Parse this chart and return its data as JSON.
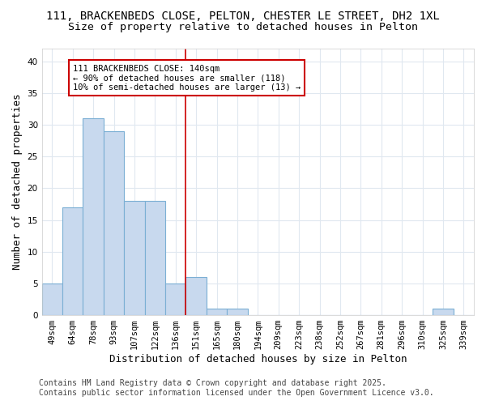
{
  "title1": "111, BRACKENBEDS CLOSE, PELTON, CHESTER LE STREET, DH2 1XL",
  "title2": "Size of property relative to detached houses in Pelton",
  "xlabel": "Distribution of detached houses by size in Pelton",
  "ylabel": "Number of detached properties",
  "categories": [
    "49sqm",
    "64sqm",
    "78sqm",
    "93sqm",
    "107sqm",
    "122sqm",
    "136sqm",
    "151sqm",
    "165sqm",
    "180sqm",
    "194sqm",
    "209sqm",
    "223sqm",
    "238sqm",
    "252sqm",
    "267sqm",
    "281sqm",
    "296sqm",
    "310sqm",
    "325sqm",
    "339sqm"
  ],
  "values": [
    5,
    17,
    31,
    29,
    18,
    18,
    5,
    6,
    1,
    1,
    0,
    0,
    0,
    0,
    0,
    0,
    0,
    0,
    0,
    1,
    0
  ],
  "bar_color": "#c8d9ee",
  "bar_edge_color": "#7bafd4",
  "vline_x": 6.5,
  "vline_color": "#cc0000",
  "annotation_text": "111 BRACKENBEDS CLOSE: 140sqm\n← 90% of detached houses are smaller (118)\n10% of semi-detached houses are larger (13) →",
  "annotation_box_color": "#ffffff",
  "annotation_box_edge_color": "#cc0000",
  "ylim": [
    0,
    42
  ],
  "yticks": [
    0,
    5,
    10,
    15,
    20,
    25,
    30,
    35,
    40
  ],
  "footer": "Contains HM Land Registry data © Crown copyright and database right 2025.\nContains public sector information licensed under the Open Government Licence v3.0.",
  "bg_color": "#ffffff",
  "plot_bg_color": "#ffffff",
  "grid_color": "#e0e8f0",
  "title_fontsize": 10,
  "subtitle_fontsize": 9.5,
  "axis_label_fontsize": 9,
  "tick_fontsize": 7.5,
  "annotation_fontsize": 7.5,
  "footer_fontsize": 7
}
